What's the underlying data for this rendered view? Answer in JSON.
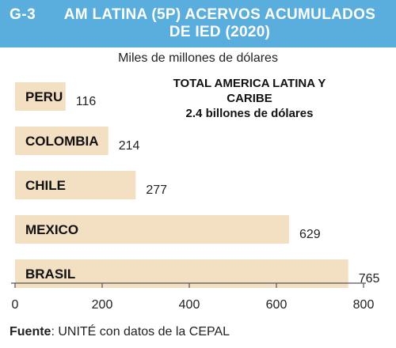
{
  "header": {
    "code": "G-3",
    "title": "AM LATINA (5P) ACERVOS ACUMULADOS DE IED (2020)"
  },
  "unit_label": "Miles de millones de dólares",
  "total": {
    "line1": "TOTAL AMERICA LATINA Y CARIBE",
    "line2": "2.4 billones de dólares"
  },
  "source": {
    "label": "Fuente",
    "text": ": UNITÉ con datos de la CEPAL"
  },
  "colors": {
    "header_bg": "#5aaede",
    "bar": "#f3dfc1",
    "axis": "#555555"
  },
  "chart_data": {
    "type": "bar",
    "orientation": "horizontal",
    "categories": [
      "PERU",
      "COLOMBIA",
      "CHILE",
      "MEXICO",
      "BRASIL"
    ],
    "values": [
      116,
      214,
      277,
      629,
      765
    ],
    "data_labels": [
      "116",
      "214",
      "277",
      "629",
      "765"
    ],
    "xlim": [
      0,
      800
    ],
    "xticks": [
      0,
      200,
      400,
      600,
      800
    ],
    "xtick_labels": [
      "0",
      "200",
      "400",
      "600",
      "800"
    ],
    "grid": false
  }
}
